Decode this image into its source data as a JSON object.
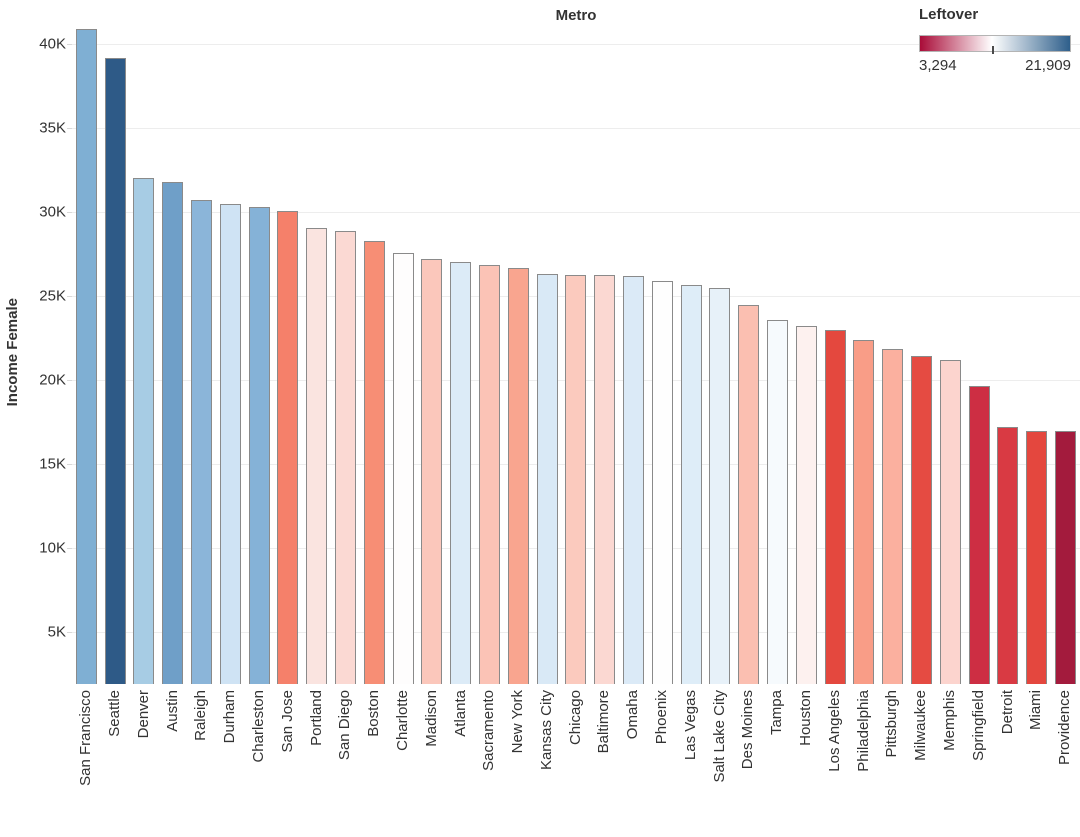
{
  "chart_data": {
    "type": "bar",
    "title": "Metro",
    "ylabel": "Income Female",
    "xlabel": "",
    "grid": "horizontal",
    "axis": {
      "vmin": 1890,
      "vmax": 41430
    },
    "y_ticks": [
      {
        "label": "5K",
        "value": 5000
      },
      {
        "label": "10K",
        "value": 10000
      },
      {
        "label": "15K",
        "value": 15000
      },
      {
        "label": "20K",
        "value": 20000
      },
      {
        "label": "25K",
        "value": 25000
      },
      {
        "label": "30K",
        "value": 30000
      },
      {
        "label": "35K",
        "value": 35000
      },
      {
        "label": "40K",
        "value": 40000
      }
    ],
    "categories": [
      "San Francisco",
      "Seattle",
      "Denver",
      "Austin",
      "Raleigh",
      "Durham",
      "Charleston",
      "San Jose",
      "Portland",
      "San Diego",
      "Boston",
      "Charlotte",
      "Madison",
      "Atlanta",
      "Sacramento",
      "New York",
      "Kansas City",
      "Chicago",
      "Baltimore",
      "Omaha",
      "Phoenix",
      "Las Vegas",
      "Salt Lake City",
      "Des Moines",
      "Tampa",
      "Houston",
      "Los Angeles",
      "Philadelphia",
      "Pittsburgh",
      "Milwaukee",
      "Memphis",
      "Springfield",
      "Detroit",
      "Miami",
      "Providence"
    ],
    "values": [
      40900,
      39150,
      32050,
      31800,
      30700,
      30500,
      30300,
      30050,
      29050,
      28850,
      28250,
      27550,
      27200,
      27050,
      26850,
      26650,
      26300,
      26250,
      26250,
      26200,
      25900,
      25650,
      25450,
      24450,
      23550,
      23200,
      23000,
      22350,
      21850,
      21400,
      21200,
      19650,
      17200,
      16950,
      16950
    ],
    "colors": [
      "#7fafd3",
      "#2e5a87",
      "#a7cce4",
      "#6f9fc8",
      "#8bb5d9",
      "#cfe3f4",
      "#85b2d7",
      "#f5806a",
      "#fae4e0",
      "#fbd9d3",
      "#f78e75",
      "#fefdfd",
      "#fbc7bb",
      "#dcebf7",
      "#fbc3b6",
      "#f9a58f",
      "#d9e9f6",
      "#fbcabe",
      "#fbd8d2",
      "#dbeaf7",
      "#fefefe",
      "#deedf8",
      "#e7f1f9",
      "#fbbfb1",
      "#f6fafd",
      "#fdf1ef",
      "#e4483e",
      "#f99d87",
      "#fbb09f",
      "#e54b42",
      "#fcd4ce",
      "#cd2e43",
      "#d93a43",
      "#e4473e",
      "#a31b3d"
    ],
    "legend": {
      "title": "Leftover",
      "min_label": "3,294",
      "max_label": "21,909",
      "colors": [
        "#a90c38",
        "#ffffff",
        "#2e5f8b"
      ],
      "position": "top-right"
    }
  }
}
